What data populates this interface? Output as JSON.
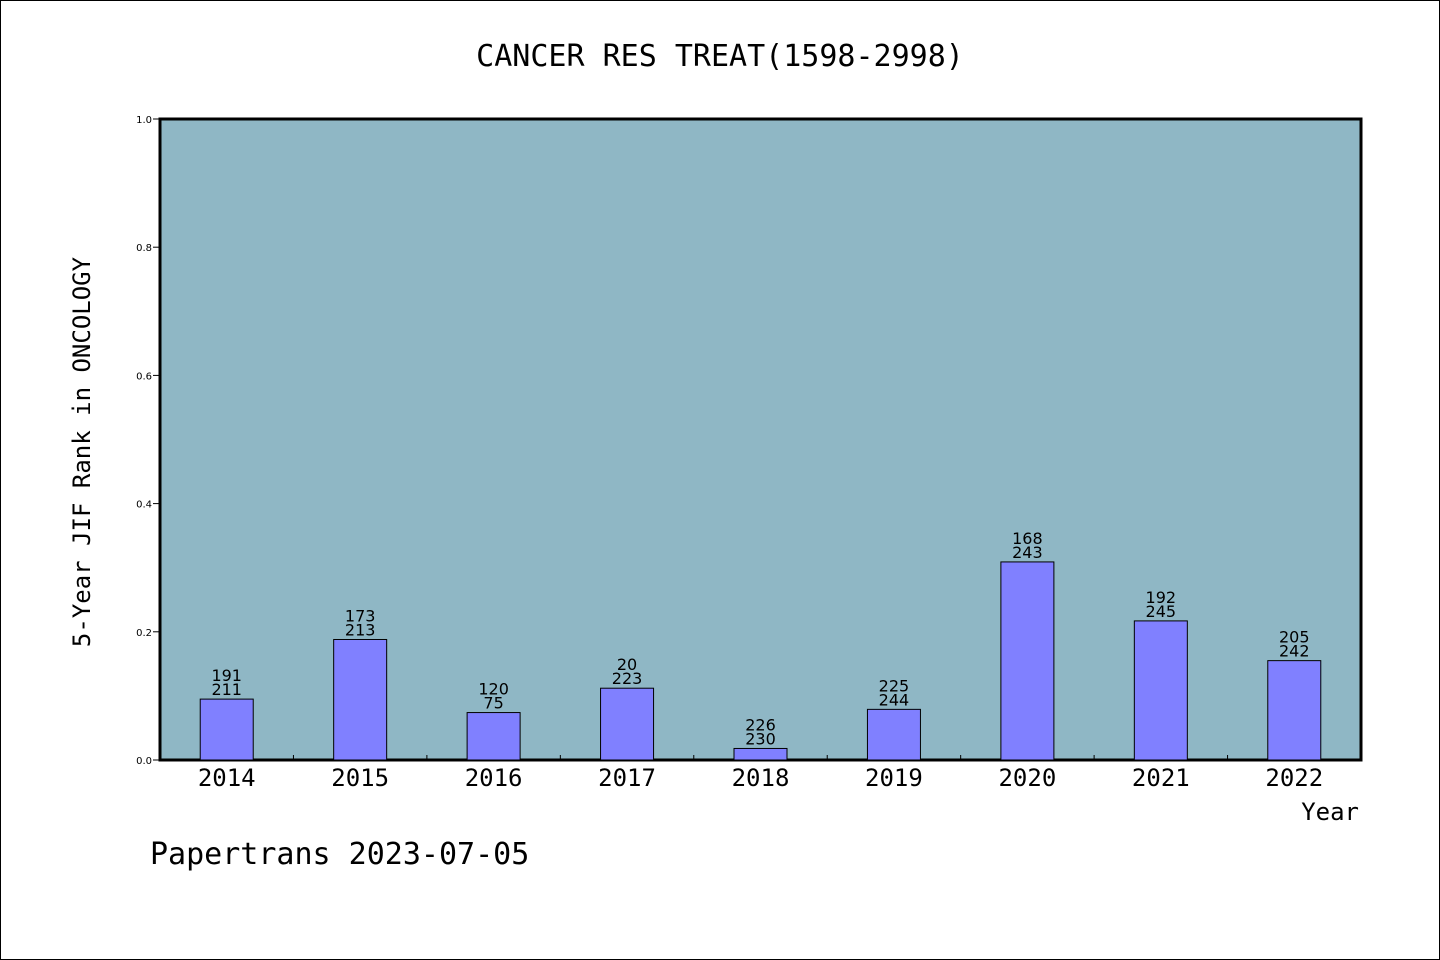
{
  "chart_data": {
    "type": "bar",
    "title": "CANCER RES TREAT(1598-2998)",
    "xlabel": "Year",
    "ylabel": "5-Year JIF Rank in ONCOLOGY",
    "categories": [
      "2014",
      "2015",
      "2016",
      "2017",
      "2018",
      "2019",
      "2020",
      "2021",
      "2022"
    ],
    "values": [
      0.095,
      0.188,
      0.074,
      0.112,
      0.018,
      0.079,
      0.309,
      0.217,
      0.155
    ],
    "annotations_top": [
      "191",
      "173",
      "120",
      "20",
      "226",
      "225",
      "168",
      "192",
      "205"
    ],
    "annotations_bottom": [
      "211",
      "213",
      "75",
      "223",
      "230",
      "244",
      "243",
      "245",
      "242"
    ],
    "ylim": [
      0,
      1.0
    ],
    "yticks": [
      "0.0",
      "0.2",
      "0.4",
      "0.6",
      "0.8",
      "1.0"
    ],
    "grid": false,
    "colors": {
      "plot_bg": "#8fb7c5",
      "bar": "#8080ff",
      "axis": "#000000"
    }
  },
  "footer": {
    "text": "Papertrans 2023-07-05"
  }
}
